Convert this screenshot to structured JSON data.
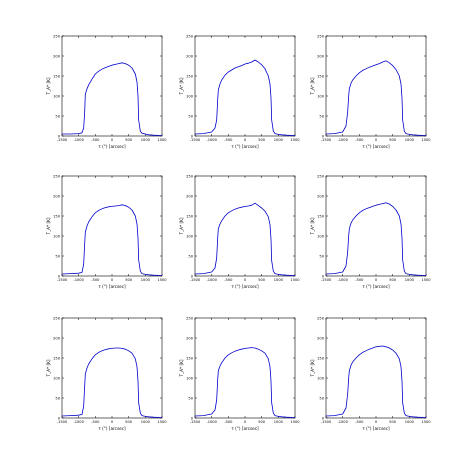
{
  "chart_data": [
    {
      "type": "line",
      "xlabel": "τ (°) [arcsec]",
      "ylabel": "T_A* [K]",
      "xlim": [
        -1500,
        1500
      ],
      "ylim": [
        0,
        250
      ],
      "xticks": [
        -1500,
        -1000,
        -500,
        0,
        500,
        1000,
        1500
      ],
      "yticks": [
        0,
        50,
        100,
        150,
        200,
        250
      ],
      "grid": false,
      "series": [
        {
          "color": "#0000cc",
          "x": [
            -1500,
            -1250,
            -1000,
            -900,
            -850,
            -820,
            -800,
            -750,
            -700,
            -600,
            -500,
            -400,
            -300,
            -200,
            -100,
            0,
            100,
            200,
            300,
            400,
            500,
            600,
            700,
            750,
            780,
            800,
            850,
            900,
            1000,
            1100,
            1250,
            1500
          ],
          "values": [
            5,
            5,
            6,
            8,
            20,
            60,
            105,
            118,
            128,
            142,
            155,
            162,
            167,
            171,
            174,
            177,
            179,
            181,
            183,
            181,
            177,
            170,
            155,
            135,
            100,
            40,
            12,
            7,
            5,
            3,
            2,
            1
          ]
        }
      ]
    },
    {
      "type": "line",
      "xlabel": "τ (°) [arcsec]",
      "ylabel": "T_A* [K]",
      "xlim": [
        -1500,
        1500
      ],
      "ylim": [
        0,
        250
      ],
      "xticks": [
        -1500,
        -1000,
        -500,
        0,
        500,
        1000,
        1500
      ],
      "yticks": [
        0,
        50,
        100,
        150,
        200,
        250
      ],
      "grid": false,
      "series": [
        {
          "color": "#0000cc",
          "x": [
            -1500,
            -1250,
            -1000,
            -900,
            -850,
            -820,
            -800,
            -750,
            -700,
            -600,
            -500,
            -400,
            -300,
            -200,
            -100,
            0,
            100,
            200,
            300,
            400,
            500,
            600,
            700,
            750,
            780,
            800,
            850,
            900,
            1000,
            1100,
            1250,
            1500
          ],
          "values": [
            5,
            6,
            10,
            20,
            40,
            90,
            115,
            130,
            140,
            152,
            160,
            165,
            170,
            173,
            176,
            180,
            182,
            185,
            190,
            185,
            178,
            168,
            150,
            130,
            95,
            40,
            12,
            6,
            4,
            3,
            2,
            1
          ]
        }
      ]
    },
    {
      "type": "line",
      "xlabel": "τ (°) [arcsec]",
      "ylabel": "T_A* [K]",
      "xlim": [
        -1500,
        1500
      ],
      "ylim": [
        0,
        250
      ],
      "xticks": [
        -1500,
        -1000,
        -500,
        0,
        500,
        1000,
        1500
      ],
      "yticks": [
        0,
        50,
        100,
        150,
        200,
        250
      ],
      "grid": false,
      "series": [
        {
          "color": "#0000cc",
          "x": [
            -1500,
            -1250,
            -1000,
            -900,
            -850,
            -820,
            -800,
            -750,
            -700,
            -600,
            -500,
            -400,
            -300,
            -200,
            -100,
            0,
            100,
            200,
            300,
            400,
            500,
            600,
            700,
            750,
            780,
            800,
            850,
            900,
            1000,
            1100,
            1250,
            1500
          ],
          "values": [
            5,
            6,
            10,
            25,
            60,
            100,
            118,
            132,
            140,
            150,
            158,
            164,
            168,
            172,
            175,
            178,
            181,
            185,
            188,
            183,
            176,
            166,
            150,
            130,
            95,
            40,
            12,
            6,
            4,
            3,
            2,
            1
          ]
        }
      ]
    },
    {
      "type": "line",
      "xlabel": "τ (°) [arcsec]",
      "ylabel": "T_A* [K]",
      "xlim": [
        -1500,
        1500
      ],
      "ylim": [
        0,
        250
      ],
      "xticks": [
        -1500,
        -1000,
        -500,
        0,
        500,
        1000,
        1500
      ],
      "yticks": [
        0,
        50,
        100,
        150,
        200,
        250
      ],
      "grid": false,
      "series": [
        {
          "color": "#0000cc",
          "x": [
            -1500,
            -1250,
            -1000,
            -900,
            -850,
            -820,
            -800,
            -750,
            -700,
            -600,
            -500,
            -400,
            -300,
            -200,
            -100,
            0,
            100,
            200,
            300,
            400,
            500,
            600,
            700,
            750,
            780,
            800,
            850,
            900,
            1000,
            1100,
            1250,
            1500
          ],
          "values": [
            5,
            6,
            7,
            9,
            30,
            80,
            110,
            125,
            135,
            148,
            158,
            164,
            168,
            171,
            173,
            174,
            175,
            176,
            178,
            176,
            172,
            165,
            150,
            130,
            95,
            40,
            12,
            6,
            4,
            3,
            2,
            1
          ]
        }
      ]
    },
    {
      "type": "line",
      "xlabel": "τ (°) [arcsec]",
      "ylabel": "T_A* [K]",
      "xlim": [
        -1500,
        1500
      ],
      "ylim": [
        0,
        250
      ],
      "xticks": [
        -1500,
        -1000,
        -500,
        0,
        500,
        1000,
        1500
      ],
      "yticks": [
        0,
        50,
        100,
        150,
        200,
        250
      ],
      "grid": false,
      "series": [
        {
          "color": "#0000cc",
          "x": [
            -1500,
            -1250,
            -1000,
            -900,
            -850,
            -820,
            -800,
            -750,
            -700,
            -600,
            -500,
            -400,
            -300,
            -200,
            -100,
            0,
            100,
            200,
            300,
            400,
            500,
            600,
            700,
            750,
            780,
            800,
            850,
            900,
            1000,
            1100,
            1250,
            1500
          ],
          "values": [
            5,
            6,
            10,
            20,
            45,
            95,
            118,
            130,
            138,
            150,
            158,
            163,
            167,
            170,
            172,
            174,
            175,
            177,
            182,
            176,
            170,
            162,
            148,
            128,
            92,
            38,
            12,
            6,
            4,
            3,
            2,
            1
          ]
        }
      ]
    },
    {
      "type": "line",
      "xlabel": "τ (°) [arcsec]",
      "ylabel": "T_A* [K]",
      "xlim": [
        -1500,
        1500
      ],
      "ylim": [
        0,
        250
      ],
      "xticks": [
        -1500,
        -1000,
        -500,
        0,
        500,
        1000,
        1500
      ],
      "yticks": [
        0,
        50,
        100,
        150,
        200,
        250
      ],
      "grid": false,
      "series": [
        {
          "color": "#0000cc",
          "x": [
            -1500,
            -1250,
            -1000,
            -900,
            -850,
            -820,
            -800,
            -750,
            -700,
            -600,
            -500,
            -400,
            -300,
            -200,
            -100,
            0,
            100,
            200,
            300,
            400,
            500,
            600,
            700,
            750,
            780,
            800,
            850,
            900,
            1000,
            1100,
            1250,
            1500
          ],
          "values": [
            5,
            6,
            10,
            25,
            60,
            100,
            118,
            132,
            140,
            150,
            158,
            164,
            168,
            171,
            174,
            177,
            179,
            181,
            183,
            180,
            174,
            165,
            150,
            130,
            95,
            40,
            12,
            6,
            4,
            3,
            2,
            1
          ]
        }
      ]
    },
    {
      "type": "line",
      "xlabel": "τ (°) [arcsec]",
      "ylabel": "T_A* [K]",
      "xlim": [
        -1500,
        1500
      ],
      "ylim": [
        0,
        250
      ],
      "xticks": [
        -1500,
        -1000,
        -500,
        0,
        500,
        1000,
        1500
      ],
      "yticks": [
        0,
        50,
        100,
        150,
        200,
        250
      ],
      "grid": false,
      "series": [
        {
          "color": "#0000cc",
          "x": [
            -1500,
            -1250,
            -1000,
            -900,
            -850,
            -820,
            -800,
            -750,
            -700,
            -600,
            -500,
            -400,
            -300,
            -200,
            -100,
            0,
            100,
            200,
            300,
            400,
            500,
            600,
            700,
            750,
            780,
            800,
            850,
            900,
            1000,
            1100,
            1250,
            1500
          ],
          "values": [
            5,
            6,
            7,
            9,
            30,
            80,
            110,
            125,
            135,
            148,
            158,
            164,
            168,
            171,
            173,
            174,
            175,
            175,
            174,
            172,
            168,
            162,
            148,
            128,
            92,
            38,
            12,
            6,
            4,
            3,
            2,
            1
          ]
        }
      ]
    },
    {
      "type": "line",
      "xlabel": "τ (°) [arcsec]",
      "ylabel": "T_A* [K]",
      "xlim": [
        -1500,
        1500
      ],
      "ylim": [
        0,
        250
      ],
      "xticks": [
        -1500,
        -1000,
        -500,
        0,
        500,
        1000,
        1500
      ],
      "yticks": [
        0,
        50,
        100,
        150,
        200,
        250
      ],
      "grid": false,
      "series": [
        {
          "color": "#0000cc",
          "x": [
            -1500,
            -1250,
            -1000,
            -900,
            -850,
            -820,
            -800,
            -750,
            -700,
            -600,
            -500,
            -400,
            -300,
            -200,
            -100,
            0,
            100,
            200,
            300,
            400,
            500,
            600,
            700,
            750,
            780,
            800,
            850,
            900,
            1000,
            1100,
            1250,
            1500
          ],
          "values": [
            5,
            6,
            10,
            20,
            45,
            95,
            118,
            130,
            138,
            150,
            158,
            163,
            167,
            170,
            172,
            174,
            175,
            176,
            175,
            172,
            168,
            162,
            148,
            128,
            92,
            38,
            12,
            6,
            4,
            3,
            2,
            1
          ]
        }
      ]
    },
    {
      "type": "line",
      "xlabel": "τ (°) [arcsec]",
      "ylabel": "T_A* [K]",
      "xlim": [
        -1500,
        1500
      ],
      "ylim": [
        0,
        250
      ],
      "xticks": [
        -1500,
        -1000,
        -500,
        0,
        500,
        1000,
        1500
      ],
      "yticks": [
        0,
        50,
        100,
        150,
        200,
        250
      ],
      "grid": false,
      "series": [
        {
          "color": "#0000cc",
          "x": [
            -1500,
            -1250,
            -1000,
            -900,
            -850,
            -820,
            -800,
            -750,
            -700,
            -600,
            -500,
            -400,
            -300,
            -200,
            -100,
            0,
            100,
            200,
            300,
            400,
            500,
            600,
            700,
            750,
            780,
            800,
            850,
            900,
            1000,
            1100,
            1250,
            1500
          ],
          "values": [
            5,
            6,
            10,
            25,
            60,
            100,
            118,
            132,
            140,
            150,
            158,
            164,
            168,
            172,
            175,
            178,
            179,
            180,
            178,
            175,
            170,
            162,
            148,
            128,
            92,
            38,
            12,
            6,
            4,
            3,
            2,
            1
          ]
        }
      ]
    }
  ]
}
